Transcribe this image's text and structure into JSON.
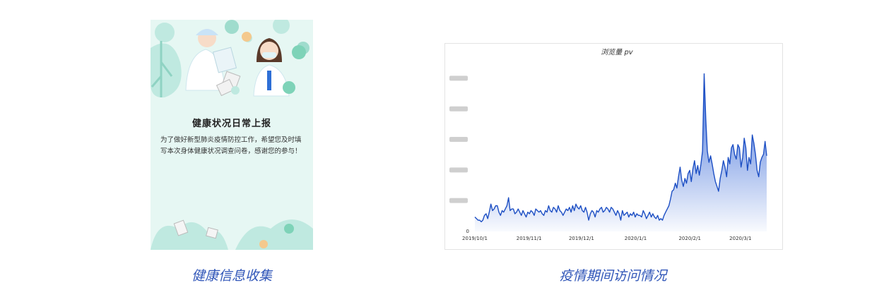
{
  "left_card": {
    "title": "健康状况日常上报",
    "description": "为了做好新型肺炎疫情防控工作，希望您及时填写本次身体健康状况调查问卷，感谢您的参与！",
    "caption": "健康信息收集"
  },
  "right_panel": {
    "caption": "疫情期间访问情况"
  },
  "colors": {
    "line": "#1d4fc4",
    "fill_top": "#2f62d6",
    "caption": "#2f55b8",
    "card_bg": "#e6f7f3"
  },
  "chart_data": {
    "type": "area",
    "title": "浏览量 pv",
    "xlabel": "",
    "ylabel": "",
    "y_tick_labels_visible": false,
    "y_zero_label": "0",
    "x_tick_labels": [
      "2019/10/1",
      "2019/11/1",
      "2019/12/1",
      "2020/1/1",
      "2020/2/1",
      "2020/3/1"
    ],
    "x_range": [
      "2019/10/1",
      "2020/3/16"
    ],
    "y_range_relative": [
      0,
      1
    ],
    "grid": false,
    "legend": "none",
    "series": [
      {
        "values_relative": [
          0.09,
          0.08,
          0.07,
          0.07,
          0.06,
          0.07,
          0.1,
          0.11,
          0.08,
          0.12,
          0.17,
          0.13,
          0.14,
          0.16,
          0.16,
          0.12,
          0.1,
          0.13,
          0.12,
          0.14,
          0.16,
          0.21,
          0.13,
          0.14,
          0.14,
          0.11,
          0.12,
          0.14,
          0.12,
          0.1,
          0.13,
          0.11,
          0.09,
          0.12,
          0.11,
          0.13,
          0.12,
          0.1,
          0.14,
          0.13,
          0.12,
          0.13,
          0.11,
          0.1,
          0.13,
          0.12,
          0.16,
          0.13,
          0.12,
          0.15,
          0.14,
          0.12,
          0.16,
          0.13,
          0.12,
          0.1,
          0.12,
          0.14,
          0.13,
          0.15,
          0.12,
          0.16,
          0.13,
          0.17,
          0.15,
          0.14,
          0.16,
          0.13,
          0.12,
          0.15,
          0.12,
          0.07,
          0.11,
          0.13,
          0.12,
          0.09,
          0.13,
          0.12,
          0.14,
          0.15,
          0.12,
          0.13,
          0.15,
          0.14,
          0.12,
          0.15,
          0.14,
          0.12,
          0.1,
          0.13,
          0.11,
          0.07,
          0.13,
          0.1,
          0.11,
          0.12,
          0.09,
          0.11,
          0.1,
          0.12,
          0.09,
          0.11,
          0.1,
          0.1,
          0.09,
          0.13,
          0.11,
          0.08,
          0.1,
          0.12,
          0.09,
          0.11,
          0.09,
          0.08,
          0.1,
          0.07,
          0.08,
          0.07,
          0.1,
          0.12,
          0.14,
          0.16,
          0.2,
          0.25,
          0.26,
          0.3,
          0.27,
          0.34,
          0.4,
          0.32,
          0.28,
          0.33,
          0.3,
          0.36,
          0.38,
          0.31,
          0.39,
          0.44,
          0.36,
          0.41,
          0.35,
          0.42,
          0.5,
          0.98,
          0.7,
          0.5,
          0.43,
          0.47,
          0.42,
          0.36,
          0.31,
          0.28,
          0.25,
          0.33,
          0.38,
          0.44,
          0.4,
          0.34,
          0.46,
          0.42,
          0.52,
          0.54,
          0.48,
          0.45,
          0.54,
          0.52,
          0.4,
          0.46,
          0.58,
          0.52,
          0.38,
          0.46,
          0.42,
          0.6,
          0.55,
          0.48,
          0.38,
          0.34,
          0.43,
          0.46,
          0.48,
          0.56,
          0.47
        ]
      }
    ]
  }
}
